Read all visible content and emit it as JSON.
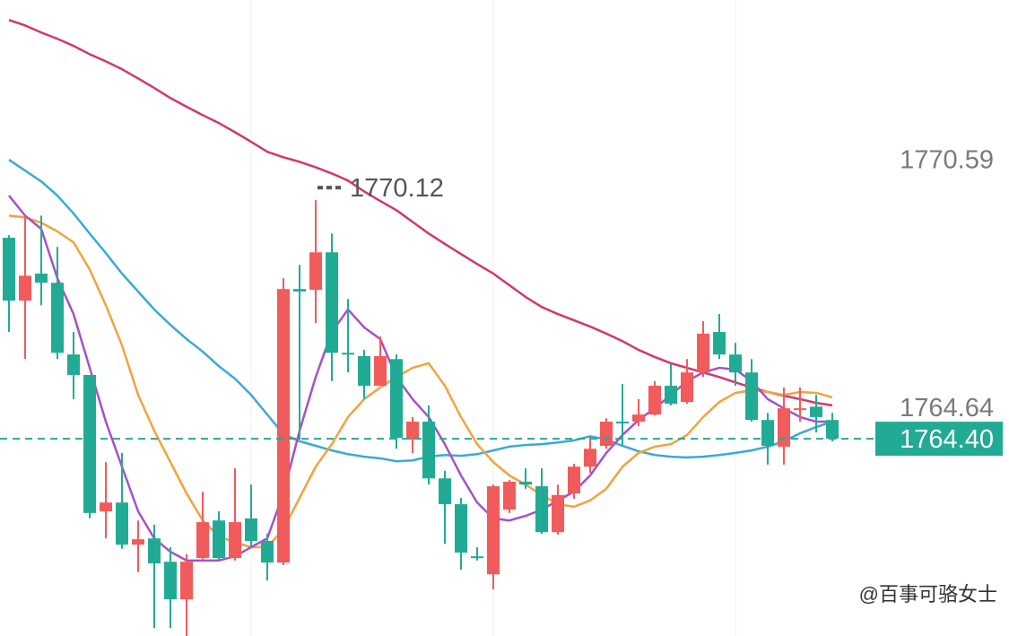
{
  "chart_data": {
    "type": "candlestick",
    "categories": [
      null,
      null,
      null,
      null,
      null,
      null,
      null,
      null,
      null,
      null,
      null,
      null,
      null,
      null,
      null,
      null,
      null,
      null,
      null,
      null,
      null,
      null,
      null,
      null,
      null,
      null,
      null,
      null,
      null,
      null,
      null,
      null,
      null,
      null,
      null,
      null,
      null,
      null,
      null,
      null,
      null,
      null,
      null,
      null,
      null,
      null,
      null,
      null,
      null,
      null,
      null,
      null
    ],
    "open": [
      1769.22,
      1767.71,
      1768.36,
      1768.14,
      1766.42,
      1765.93,
      1762.66,
      1762.87,
      1761.86,
      1762.01,
      1761.45,
      1760.55,
      1761.54,
      1762.44,
      1761.54,
      1762.49,
      1761.95,
      1761.43,
      1767.99,
      1767.97,
      1768.87,
      1766.46,
      1766.38,
      1765.67,
      1766.31,
      1764.38,
      1764.81,
      1763.45,
      1762.83,
      1761.58,
      1761.15,
      1762.7,
      1763.37,
      1763.26,
      1762.16,
      1763.09,
      1763.73,
      1764.23,
      1764.81,
      1764.81,
      1764.98,
      1765.67,
      1765.28,
      1765.99,
      1766.96,
      1766.42,
      1765.99,
      1764.85,
      1764.21,
      1765.09,
      1765.17,
      1764.85
    ],
    "high": [
      1769.28,
      1769.75,
      1769.75,
      1769.0,
      1766.96,
      1765.93,
      1763.84,
      1764.06,
      1762.44,
      1762.34,
      1761.8,
      1761.63,
      1763.13,
      1762.66,
      1763.69,
      1763.3,
      1762.12,
      1768.25,
      1768.57,
      1770.12,
      1769.32,
      1767.75,
      1766.53,
      1766.85,
      1766.42,
      1764.92,
      1765.2,
      1763.63,
      1762.98,
      1761.8,
      1763.3,
      1763.41,
      1763.69,
      1763.69,
      1763.3,
      1763.8,
      1764.46,
      1764.89,
      1765.71,
      1765.35,
      1765.78,
      1766.21,
      1766.31,
      1767.22,
      1767.39,
      1766.7,
      1766.31,
      1765.02,
      1765.63,
      1765.63,
      1765.45,
      1765.02
    ],
    "low": [
      1766.96,
      1766.31,
      1767.6,
      1766.31,
      1765.35,
      1762.49,
      1762.01,
      1761.76,
      1761.2,
      1759.86,
      1759.86,
      1759.67,
      1761.48,
      1761.48,
      1761.48,
      1761.8,
      1761.0,
      1761.37,
      1764.38,
      1767.17,
      1765.78,
      1765.99,
      1765.35,
      1765.67,
      1764.16,
      1764.06,
      1763.3,
      1761.88,
      1761.26,
      1761.48,
      1760.79,
      1762.62,
      1763.2,
      1762.12,
      1762.1,
      1762.96,
      1763.58,
      1764.16,
      1764.23,
      1764.7,
      1764.96,
      1765.2,
      1765.24,
      1765.88,
      1766.31,
      1765.67,
      1764.81,
      1763.78,
      1763.78,
      1764.81,
      1764.55,
      1764.34
    ],
    "close": [
      1767.71,
      1768.31,
      1768.14,
      1766.46,
      1765.93,
      1762.62,
      1762.87,
      1761.86,
      1761.99,
      1761.41,
      1760.55,
      1761.45,
      1762.4,
      1761.54,
      1762.4,
      1761.95,
      1761.43,
      1767.99,
      1767.93,
      1768.87,
      1766.46,
      1766.42,
      1765.67,
      1766.38,
      1764.42,
      1764.81,
      1763.45,
      1762.83,
      1761.67,
      1761.54,
      1763.26,
      1763.37,
      1763.3,
      1762.16,
      1763.05,
      1763.73,
      1764.16,
      1764.81,
      1764.77,
      1764.98,
      1765.67,
      1765.24,
      1765.99,
      1766.92,
      1766.42,
      1765.99,
      1764.85,
      1764.23,
      1765.13,
      1765.13,
      1764.92,
      1764.4
    ],
    "up_color": "#f15b5b",
    "down_color": "#22ab94",
    "lines": [
      {
        "color": "#d2376f",
        "values": [
          1774.44,
          1774.31,
          1774.14,
          1773.99,
          1773.82,
          1773.62,
          1773.45,
          1773.26,
          1773.04,
          1772.81,
          1772.57,
          1772.36,
          1772.16,
          1771.97,
          1771.75,
          1771.52,
          1771.28,
          1771.15,
          1771.04,
          1770.91,
          1770.76,
          1770.59,
          1770.33,
          1770.1,
          1769.88,
          1769.6,
          1769.32,
          1769.07,
          1768.83,
          1768.59,
          1768.36,
          1768.08,
          1767.8,
          1767.56,
          1767.39,
          1767.24,
          1767.09,
          1766.92,
          1766.74,
          1766.53,
          1766.36,
          1766.21,
          1766.1,
          1765.99,
          1765.88,
          1765.75,
          1765.63,
          1765.52,
          1765.43,
          1765.35,
          1765.26,
          1765.2
        ]
      },
      {
        "color": "#3aaad6",
        "values": [
          1771.09,
          1770.83,
          1770.57,
          1770.23,
          1769.8,
          1769.32,
          1768.85,
          1768.36,
          1767.93,
          1767.5,
          1767.13,
          1766.79,
          1766.49,
          1766.14,
          1765.84,
          1765.45,
          1764.98,
          1764.51,
          1764.34,
          1764.23,
          1764.12,
          1764.03,
          1763.97,
          1763.93,
          1763.86,
          1763.88,
          1763.97,
          1764.01,
          1763.99,
          1764.03,
          1764.12,
          1764.21,
          1764.25,
          1764.27,
          1764.31,
          1764.36,
          1764.46,
          1764.38,
          1764.23,
          1764.1,
          1764.01,
          1763.97,
          1763.95,
          1763.97,
          1764.01,
          1764.06,
          1764.12,
          1764.21,
          1764.34,
          1764.53,
          1764.68,
          1764.81
        ]
      },
      {
        "color": "#f3a33c",
        "values": [
          1769.75,
          1769.71,
          1769.58,
          1769.37,
          1769.11,
          1768.46,
          1767.6,
          1766.64,
          1765.45,
          1764.59,
          1763.84,
          1763.09,
          1762.44,
          1762.06,
          1761.91,
          1761.8,
          1761.8,
          1762.23,
          1762.98,
          1763.73,
          1764.27,
          1764.92,
          1765.35,
          1765.63,
          1765.88,
          1766.1,
          1766.21,
          1765.67,
          1764.92,
          1764.27,
          1763.84,
          1763.52,
          1763.3,
          1763.05,
          1762.83,
          1762.77,
          1762.92,
          1763.2,
          1763.73,
          1764.06,
          1764.21,
          1764.27,
          1764.49,
          1764.92,
          1765.28,
          1765.5,
          1765.56,
          1765.52,
          1765.45,
          1765.52,
          1765.5,
          1765.39
        ]
      },
      {
        "color": "#a650c8",
        "values": [
          1770.23,
          1769.75,
          1769.43,
          1768.25,
          1767.39,
          1766.1,
          1764.81,
          1763.73,
          1762.66,
          1762.01,
          1761.69,
          1761.48,
          1761.48,
          1761.48,
          1761.58,
          1761.8,
          1762.01,
          1763.09,
          1764.59,
          1765.88,
          1766.96,
          1767.5,
          1767.07,
          1766.79,
          1765.88,
          1765.35,
          1764.92,
          1764.27,
          1763.52,
          1762.87,
          1762.49,
          1762.44,
          1762.55,
          1762.7,
          1762.92,
          1763.13,
          1763.52,
          1764.06,
          1764.49,
          1764.85,
          1765.13,
          1765.45,
          1765.78,
          1765.99,
          1766.1,
          1766.06,
          1765.78,
          1765.35,
          1765.13,
          1764.92,
          1764.81,
          1764.81
        ]
      }
    ],
    "ylim": [
      1759.67,
      1774.92
    ],
    "yticks": [
      1770.59,
      1764.64
    ],
    "high_label": 1770.12,
    "last_price": {
      "value": 1764.4,
      "label": "1764.40"
    },
    "last_price_color": "#22ab94",
    "watermark": "@百事可骆女士"
  }
}
